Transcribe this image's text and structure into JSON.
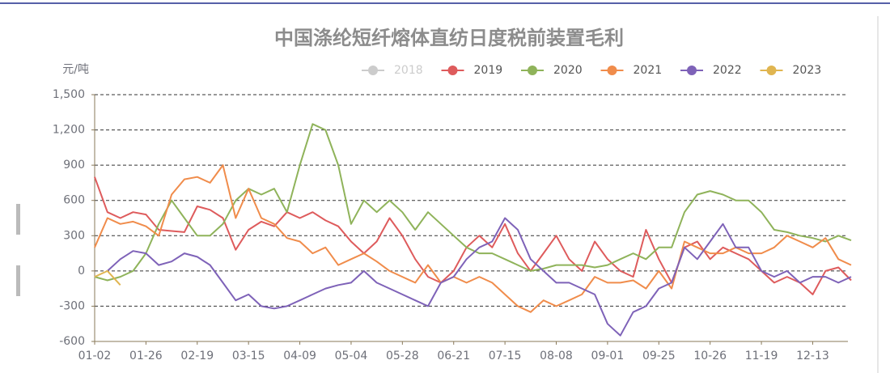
{
  "chart_data": {
    "type": "line",
    "title": "中国涤纶短纤熔体直纺日度税前装置毛利",
    "y_label": "元/吨",
    "categories": [
      "01-02",
      null,
      null,
      null,
      "01-26",
      null,
      null,
      null,
      "02-19",
      null,
      null,
      null,
      "03-15",
      null,
      null,
      null,
      "04-09",
      null,
      null,
      null,
      "05-04",
      null,
      null,
      null,
      "05-28",
      null,
      null,
      null,
      "06-21",
      null,
      null,
      null,
      "07-15",
      null,
      null,
      null,
      "08-08",
      null,
      null,
      null,
      "09-01",
      null,
      null,
      null,
      "09-25",
      null,
      null,
      null,
      "10-26",
      null,
      null,
      null,
      "11-19",
      null,
      null,
      null,
      "12-13",
      null,
      null,
      null
    ],
    "ylim": [
      -600,
      1500
    ],
    "yticks": [
      -600,
      -300,
      0,
      300,
      600,
      900,
      {
        "value": 1200,
        "label": "1,200"
      },
      {
        "value": 1500,
        "label": "1,500"
      }
    ],
    "grid": true,
    "legend": "top",
    "series": [
      {
        "name": "2018",
        "color": "#cccccc",
        "values": [
          null,
          null,
          null,
          null,
          null,
          null,
          null,
          null,
          null,
          null,
          null,
          null,
          null,
          null,
          null,
          null,
          null,
          null,
          null,
          null,
          null,
          null,
          null,
          null,
          null,
          null,
          null,
          null,
          null,
          null,
          null,
          null,
          null,
          null,
          null,
          null,
          null,
          null,
          null,
          null,
          null,
          null,
          null,
          null,
          null,
          null,
          null,
          null,
          null,
          null,
          null,
          null,
          null,
          null,
          null,
          null,
          null,
          null,
          null,
          null
        ]
      },
      {
        "name": "2019",
        "color": "#de5b5c",
        "values": [
          800,
          500,
          450,
          500,
          480,
          350,
          340,
          330,
          550,
          520,
          450,
          180,
          350,
          420,
          380,
          500,
          450,
          500,
          430,
          380,
          250,
          150,
          250,
          450,
          300,
          100,
          -50,
          -100,
          0,
          200,
          300,
          200,
          400,
          150,
          0,
          150,
          300,
          100,
          0,
          250,
          100,
          0,
          -50,
          350,
          100,
          -100,
          200,
          250,
          100,
          200,
          150,
          100,
          0,
          -100,
          -50,
          -100,
          -200,
          0,
          30,
          -80
        ]
      },
      {
        "name": "2020",
        "color": "#8fb35a",
        "values": [
          -50,
          -80,
          -50,
          0,
          150,
          400,
          600,
          450,
          300,
          300,
          400,
          600,
          700,
          650,
          700,
          500,
          900,
          1250,
          1200,
          900,
          400,
          600,
          500,
          600,
          500,
          350,
          500,
          400,
          300,
          200,
          150,
          150,
          100,
          50,
          0,
          20,
          50,
          50,
          50,
          30,
          50,
          100,
          150,
          100,
          200,
          200,
          500,
          650,
          680,
          650,
          600,
          600,
          500,
          350,
          330,
          300,
          280,
          250,
          300,
          260
        ]
      },
      {
        "name": "2021",
        "color": "#f08c4b",
        "values": [
          200,
          450,
          400,
          420,
          380,
          300,
          650,
          780,
          800,
          750,
          900,
          450,
          700,
          450,
          400,
          280,
          250,
          150,
          200,
          50,
          100,
          150,
          80,
          0,
          -50,
          -100,
          50,
          -100,
          -50,
          -100,
          -50,
          -100,
          -200,
          -300,
          -350,
          -250,
          -300,
          -250,
          -200,
          -50,
          -100,
          -100,
          -80,
          -150,
          0,
          -150,
          250,
          200,
          150,
          150,
          200,
          150,
          150,
          200,
          300,
          250,
          200,
          280,
          100,
          50
        ]
      },
      {
        "name": "2022",
        "color": "#7e62b8",
        "values": [
          null,
          0,
          100,
          170,
          150,
          50,
          80,
          150,
          120,
          50,
          -100,
          -250,
          -200,
          -300,
          -320,
          -300,
          -250,
          -200,
          -150,
          -120,
          -100,
          0,
          -100,
          -150,
          -200,
          -250,
          -300,
          -100,
          -50,
          100,
          200,
          250,
          450,
          350,
          100,
          0,
          -100,
          -100,
          -150,
          -200,
          -450,
          -550,
          -350,
          -300,
          -150,
          -100,
          200,
          100,
          250,
          400,
          200,
          200,
          0,
          -50,
          0,
          -100,
          -50,
          -50,
          -100,
          -50
        ]
      },
      {
        "name": "2023",
        "color": "#e0b550",
        "values": [
          -50,
          0,
          -120,
          null,
          null,
          null,
          null,
          null,
          null,
          null,
          null,
          null,
          null,
          null,
          null,
          null,
          null,
          null,
          null,
          null,
          null,
          null,
          null,
          null,
          null,
          null,
          null,
          null,
          null,
          null,
          null,
          null,
          null,
          null,
          null,
          null,
          null,
          null,
          null,
          null,
          null,
          null,
          null,
          null,
          null,
          null,
          null,
          null,
          null,
          null,
          null,
          null,
          null,
          null,
          null,
          null,
          null,
          null,
          null,
          null
        ]
      }
    ]
  }
}
